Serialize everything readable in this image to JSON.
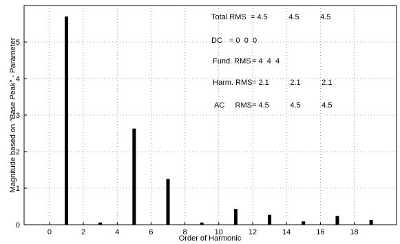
{
  "chart_data": {
    "type": "bar",
    "x": [
      1,
      3,
      5,
      7,
      9,
      11,
      13,
      15,
      17,
      19
    ],
    "values": [
      5.7,
      0.06,
      2.63,
      1.25,
      0.06,
      0.43,
      0.27,
      0.09,
      0.24,
      0.13
    ],
    "xlabel": "Order of Harmonic",
    "ylabel": "Magnitude based on \"Base Peak\" - Parameter",
    "xlim": [
      -1.5,
      20.5
    ],
    "ylim": [
      0,
      6
    ],
    "xticks": [
      "0",
      "2",
      "4",
      "6",
      "8",
      "10",
      "12",
      "14",
      "16",
      "18"
    ],
    "yticks": [
      "0",
      "1",
      "2",
      "3",
      "4",
      "5"
    ],
    "grid": true,
    "bar_color": "#000000",
    "annotations": [
      {
        "label": "Total  RMS",
        "values": "= 4.5          4.5          4.5"
      },
      {
        "label": "DC",
        "values": "= 0  0  0"
      },
      {
        "label": "Fund. RMS",
        "values": "= 4  4  4"
      },
      {
        "label": "Harm. RMS",
        "values": "= 2.1          2.1          2.1"
      },
      {
        "label": "AC     RMS",
        "values": "= 4.5          4.5          4.5"
      }
    ]
  }
}
